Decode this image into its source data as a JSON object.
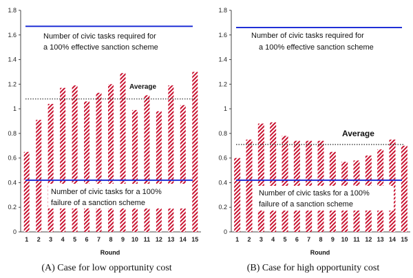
{
  "chart_data": [
    {
      "type": "bar",
      "caption": "(A) Case for low opportunity cost",
      "xlabel": "Round",
      "ylabel": "",
      "ylim": [
        0,
        1.8
      ],
      "yticks": [
        "0",
        "0.2",
        "0.4",
        "0.6",
        "0.8",
        "1",
        "1.2",
        "1.4",
        "1.6",
        "1.8"
      ],
      "categories": [
        "1",
        "2",
        "3",
        "4",
        "5",
        "6",
        "7",
        "8",
        "9",
        "10",
        "11",
        "12",
        "13",
        "14",
        "15"
      ],
      "values": [
        0.65,
        0.91,
        1.04,
        1.17,
        1.19,
        1.06,
        1.13,
        1.2,
        1.29,
        0.99,
        1.11,
        0.98,
        1.19,
        1.03,
        1.3
      ],
      "bar_color": "#c8102e",
      "upper_line": {
        "value": 1.67,
        "color": "#1f2fd6",
        "label_1": "Number of civic tasks required for",
        "label_2": "a 100% effective sanction scheme"
      },
      "lower_line": {
        "value": 0.42,
        "color": "#1f2fd6",
        "label_1": "Number of civic tasks for a 100%",
        "label_2": "failure of a sanction scheme"
      },
      "average": {
        "value": 1.08,
        "label": "Average"
      },
      "grid": false
    },
    {
      "type": "bar",
      "caption": "(B) Case for high opportunity cost",
      "xlabel": "Round",
      "ylabel": "",
      "ylim": [
        0,
        1.8
      ],
      "yticks": [
        "0",
        "0.2",
        "0.4",
        "0.6",
        "0.8",
        "1",
        "1.2",
        "1.4",
        "1.6",
        "1.8"
      ],
      "categories": [
        "1",
        "2",
        "3",
        "4",
        "5",
        "6",
        "7",
        "8",
        "9",
        "10",
        "11",
        "12",
        "13",
        "14",
        "15"
      ],
      "values": [
        0.6,
        0.75,
        0.88,
        0.89,
        0.78,
        0.74,
        0.74,
        0.74,
        0.65,
        0.57,
        0.58,
        0.62,
        0.67,
        0.75,
        0.7
      ],
      "bar_color": "#c8102e",
      "upper_line": {
        "value": 1.66,
        "color": "#1f2fd6",
        "label_1": "Number of civic tasks required for",
        "label_2": "a 100% effective sanction scheme"
      },
      "lower_line": {
        "value": 0.42,
        "color": "#1f2fd6",
        "label_1": "Number of civic tasks for a 100%",
        "label_2": "failure of a sanction scheme"
      },
      "average": {
        "value": 0.71,
        "label": "Average"
      },
      "grid": false
    }
  ]
}
